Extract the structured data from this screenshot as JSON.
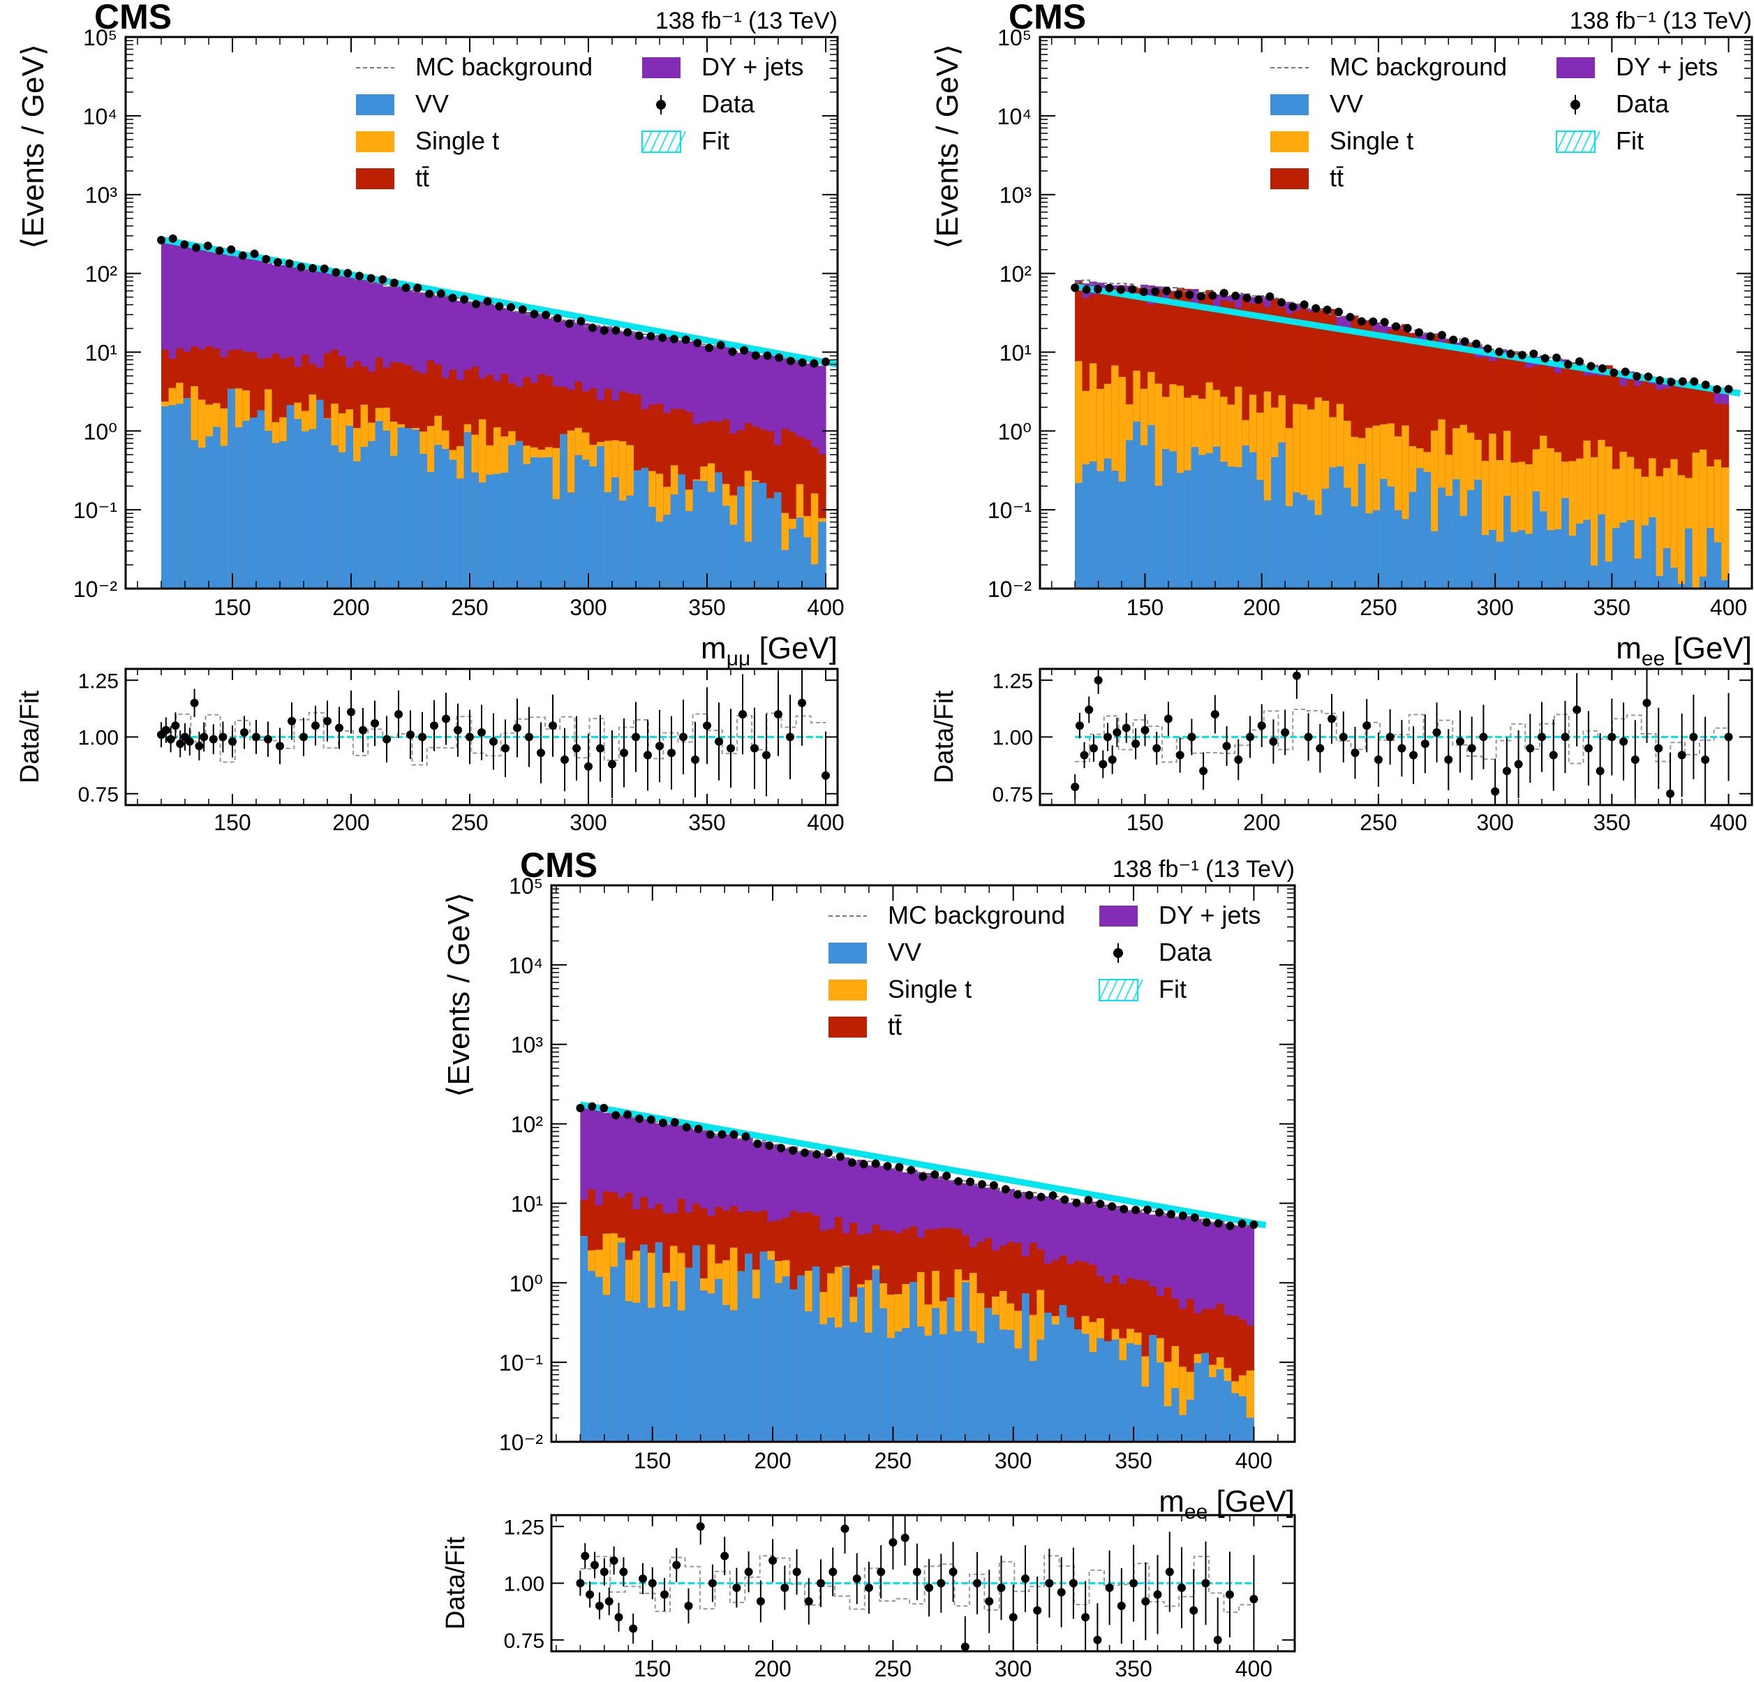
{
  "colors": {
    "vv": "#3f90da",
    "single_t": "#ffa90e",
    "ttbar": "#bd1f01",
    "dy": "#832db6",
    "fit": "#00e5ee",
    "mc_background": "#777777",
    "data": "#000000"
  },
  "legend": {
    "mc_background": "MC background",
    "vv": "VV",
    "single_t": "Single t",
    "ttbar": "tt̄",
    "dy": "DY + jets",
    "data": "Data",
    "fit": "Fit"
  },
  "chart_data": [
    {
      "type": "bar",
      "stacked": true,
      "yscale": "log",
      "experiment": "CMS",
      "lumi": "138 fb⁻¹ (13 TeV)",
      "xlabel": "m_μμ [GeV]",
      "ylabel": "⟨Events / GeV⟩",
      "xlim": [
        105,
        405
      ],
      "ylim": [
        0.01,
        100000
      ],
      "x_ticks": [
        150,
        200,
        250,
        300,
        350,
        400
      ],
      "y_ticks": [
        "10⁻²",
        "10⁻¹",
        "10⁰",
        "10¹",
        "10²",
        "10³",
        "10⁴",
        "10⁵"
      ],
      "legend_position": "top-right",
      "bin_range": [
        120,
        400
      ],
      "series": [
        {
          "name": "VV",
          "approx_level": {
            "120": 1.5,
            "200": 1.0,
            "300": 0.3,
            "400": 0.05
          }
        },
        {
          "name": "Single t",
          "approx_level": {
            "120": 3.0,
            "200": 1.5,
            "300": 0.6,
            "400": 0.1
          }
        },
        {
          "name": "tt̄",
          "approx_level": {
            "120": 10,
            "200": 8,
            "300": 3.5,
            "400": 0.6
          }
        },
        {
          "name": "DY + jets",
          "approx_level": {
            "120": 260,
            "200": 90,
            "300": 22,
            "400": 7
          }
        }
      ],
      "fit": {
        "x": [
          120,
          405
        ],
        "y": [
          270,
          7
        ]
      },
      "data": {
        "approx_level": {
          "120": 280,
          "200": 95,
          "300": 22,
          "400": 7
        }
      },
      "ratio": {
        "ylabel": "Data/Fit",
        "ylim": [
          0.7,
          1.3
        ],
        "y_ticks": [
          "0.75",
          "1.00",
          "1.25"
        ],
        "points": [
          [
            120,
            1.01
          ],
          [
            122,
            1.03
          ],
          [
            124,
            0.99
          ],
          [
            126,
            1.05
          ],
          [
            128,
            0.97
          ],
          [
            130,
            1.0
          ],
          [
            132,
            0.98
          ],
          [
            134,
            1.15
          ],
          [
            136,
            0.96
          ],
          [
            138,
            1.0
          ],
          [
            142,
            0.99
          ],
          [
            146,
            1.0
          ],
          [
            150,
            0.98
          ],
          [
            155,
            1.02
          ],
          [
            160,
            1.0
          ],
          [
            165,
            0.99
          ],
          [
            170,
            0.96
          ],
          [
            175,
            1.07
          ],
          [
            180,
            1.0
          ],
          [
            185,
            1.05
          ],
          [
            190,
            1.07
          ],
          [
            195,
            1.04
          ],
          [
            200,
            1.11
          ],
          [
            205,
            1.03
          ],
          [
            210,
            1.06
          ],
          [
            215,
            0.99
          ],
          [
            220,
            1.1
          ],
          [
            225,
            1.01
          ],
          [
            230,
            1.0
          ],
          [
            235,
            1.05
          ],
          [
            240,
            1.08
          ],
          [
            245,
            1.03
          ],
          [
            250,
            1.0
          ],
          [
            255,
            1.02
          ],
          [
            260,
            0.98
          ],
          [
            265,
            0.95
          ],
          [
            270,
            1.04
          ],
          [
            275,
            1.0
          ],
          [
            280,
            0.93
          ],
          [
            285,
            1.05
          ],
          [
            290,
            0.9
          ],
          [
            295,
            0.95
          ],
          [
            300,
            0.87
          ],
          [
            305,
            0.95
          ],
          [
            310,
            0.88
          ],
          [
            315,
            0.93
          ],
          [
            320,
            1.0
          ],
          [
            325,
            0.92
          ],
          [
            330,
            0.96
          ],
          [
            335,
            0.93
          ],
          [
            340,
            1.0
          ],
          [
            345,
            0.9
          ],
          [
            350,
            1.05
          ],
          [
            355,
            0.98
          ],
          [
            360,
            0.95
          ],
          [
            365,
            1.1
          ],
          [
            370,
            0.95
          ],
          [
            375,
            0.92
          ],
          [
            380,
            1.1
          ],
          [
            385,
            1.0
          ],
          [
            390,
            1.15
          ],
          [
            400,
            0.83
          ]
        ]
      }
    },
    {
      "type": "bar",
      "stacked": true,
      "yscale": "log",
      "experiment": "CMS",
      "lumi": "138 fb⁻¹ (13 TeV)",
      "xlabel": "m_ee [GeV]",
      "ylabel": "⟨Events / GeV⟩",
      "xlim": [
        105,
        410
      ],
      "ylim": [
        0.01,
        100000
      ],
      "x_ticks": [
        150,
        200,
        250,
        300,
        350,
        400
      ],
      "y_ticks": [
        "10⁻²",
        "10⁻¹",
        "10⁰",
        "10¹",
        "10²",
        "10³",
        "10⁴",
        "10⁵"
      ],
      "legend_position": "top-right",
      "bin_range": [
        120,
        400
      ],
      "series": [
        {
          "name": "VV",
          "approx_level": {
            "120": 0.6,
            "200": 0.3,
            "300": 0.1,
            "400": 0.02
          }
        },
        {
          "name": "Single t",
          "approx_level": {
            "120": 5,
            "200": 2,
            "300": 0.7,
            "400": 0.3
          }
        },
        {
          "name": "tt̄",
          "approx_level": {
            "120": 60,
            "200": 45,
            "300": 10,
            "400": 2.7
          }
        },
        {
          "name": "DY + jets",
          "approx_level": {
            "120": 80,
            "200": 50,
            "300": 11,
            "400": 3.2
          }
        }
      ],
      "fit": {
        "x": [
          120,
          405
        ],
        "y": [
          68,
          3
        ]
      },
      "data": {
        "approx_level": {
          "120": 65,
          "200": 50,
          "300": 11,
          "400": 3.3
        }
      },
      "ratio": {
        "ylabel": "Data/Fit",
        "ylim": [
          0.7,
          1.3
        ],
        "y_ticks": [
          "0.75",
          "1.00",
          "1.25"
        ],
        "points": [
          [
            120,
            0.78
          ],
          [
            122,
            1.05
          ],
          [
            124,
            0.92
          ],
          [
            126,
            1.12
          ],
          [
            128,
            0.95
          ],
          [
            130,
            1.25
          ],
          [
            132,
            0.88
          ],
          [
            134,
            1.0
          ],
          [
            136,
            0.9
          ],
          [
            138,
            1.02
          ],
          [
            142,
            1.04
          ],
          [
            146,
            0.97
          ],
          [
            150,
            1.03
          ],
          [
            155,
            0.95
          ],
          [
            160,
            1.08
          ],
          [
            165,
            0.92
          ],
          [
            170,
            1.0
          ],
          [
            175,
            0.85
          ],
          [
            180,
            1.1
          ],
          [
            185,
            0.96
          ],
          [
            190,
            0.9
          ],
          [
            195,
            1.0
          ],
          [
            200,
            1.05
          ],
          [
            205,
            0.98
          ],
          [
            210,
            1.02
          ],
          [
            215,
            1.27
          ],
          [
            220,
            1.0
          ],
          [
            225,
            0.95
          ],
          [
            230,
            1.08
          ],
          [
            235,
            1.0
          ],
          [
            240,
            0.93
          ],
          [
            245,
            1.05
          ],
          [
            250,
            0.9
          ],
          [
            255,
            1.0
          ],
          [
            260,
            0.95
          ],
          [
            265,
            0.92
          ],
          [
            270,
            0.97
          ],
          [
            275,
            1.02
          ],
          [
            280,
            0.9
          ],
          [
            285,
            0.98
          ],
          [
            290,
            0.95
          ],
          [
            295,
            1.0
          ],
          [
            300,
            0.76
          ],
          [
            305,
            0.85
          ],
          [
            310,
            0.88
          ],
          [
            315,
            0.95
          ],
          [
            320,
            1.0
          ],
          [
            325,
            0.92
          ],
          [
            330,
            1.0
          ],
          [
            335,
            1.12
          ],
          [
            340,
            0.95
          ],
          [
            345,
            0.85
          ],
          [
            350,
            1.0
          ],
          [
            355,
            0.98
          ],
          [
            360,
            0.9
          ],
          [
            365,
            1.15
          ],
          [
            370,
            0.95
          ],
          [
            375,
            0.75
          ],
          [
            380,
            0.92
          ],
          [
            385,
            1.0
          ],
          [
            390,
            0.9
          ],
          [
            400,
            1.0
          ]
        ]
      }
    },
    {
      "type": "bar",
      "stacked": true,
      "yscale": "log",
      "experiment": "CMS",
      "lumi": "138 fb⁻¹ (13 TeV)",
      "xlabel": "m_ee [GeV]",
      "ylabel": "⟨Events / GeV⟩",
      "xlim": [
        108,
        417
      ],
      "ylim": [
        0.01,
        100000
      ],
      "x_ticks": [
        150,
        200,
        250,
        300,
        350,
        400
      ],
      "y_ticks": [
        "10⁻²",
        "10⁻¹",
        "10⁰",
        "10¹",
        "10²",
        "10³",
        "10⁴",
        "10⁵"
      ],
      "legend_position": "top-right",
      "bin_range": [
        120,
        400
      ],
      "series": [
        {
          "name": "VV",
          "approx_level": {
            "120": 1.5,
            "200": 1.0,
            "300": 0.3,
            "400": 0.03
          }
        },
        {
          "name": "Single t",
          "approx_level": {
            "120": 3,
            "200": 1.5,
            "300": 0.7,
            "400": 0.05
          }
        },
        {
          "name": "tt̄",
          "approx_level": {
            "120": 12,
            "200": 7,
            "300": 3,
            "400": 0.3
          }
        },
        {
          "name": "DY + jets",
          "approx_level": {
            "120": 170,
            "200": 55,
            "300": 14,
            "400": 5
          }
        }
      ],
      "fit": {
        "x": [
          120,
          405
        ],
        "y": [
          175,
          5.3
        ]
      },
      "data": {
        "approx_level": {
          "120": 170,
          "200": 55,
          "300": 14,
          "400": 5
        }
      },
      "ratio": {
        "ylabel": "Data/Fit",
        "ylim": [
          0.7,
          1.3
        ],
        "y_ticks": [
          "0.75",
          "1.00",
          "1.25"
        ],
        "points": [
          [
            120,
            1.0
          ],
          [
            122,
            1.12
          ],
          [
            124,
            0.95
          ],
          [
            126,
            1.08
          ],
          [
            128,
            0.9
          ],
          [
            130,
            1.05
          ],
          [
            132,
            0.92
          ],
          [
            134,
            1.1
          ],
          [
            136,
            0.85
          ],
          [
            138,
            1.05
          ],
          [
            142,
            0.8
          ],
          [
            146,
            1.02
          ],
          [
            150,
            1.0
          ],
          [
            155,
            0.95
          ],
          [
            160,
            1.08
          ],
          [
            165,
            0.9
          ],
          [
            170,
            1.25
          ],
          [
            175,
            1.0
          ],
          [
            180,
            1.12
          ],
          [
            185,
            0.98
          ],
          [
            190,
            1.05
          ],
          [
            195,
            0.92
          ],
          [
            200,
            1.1
          ],
          [
            205,
            0.98
          ],
          [
            210,
            1.05
          ],
          [
            215,
            0.92
          ],
          [
            220,
            1.0
          ],
          [
            225,
            1.05
          ],
          [
            230,
            1.24
          ],
          [
            235,
            1.02
          ],
          [
            240,
            0.98
          ],
          [
            245,
            1.05
          ],
          [
            250,
            1.18
          ],
          [
            255,
            1.2
          ],
          [
            260,
            1.05
          ],
          [
            265,
            0.98
          ],
          [
            270,
            1.0
          ],
          [
            275,
            1.05
          ],
          [
            280,
            0.72
          ],
          [
            285,
            1.0
          ],
          [
            290,
            0.92
          ],
          [
            295,
            0.98
          ],
          [
            300,
            0.85
          ],
          [
            305,
            1.02
          ],
          [
            310,
            0.88
          ],
          [
            315,
            1.0
          ],
          [
            320,
            0.96
          ],
          [
            325,
            1.0
          ],
          [
            330,
            0.85
          ],
          [
            335,
            0.75
          ],
          [
            340,
            0.98
          ],
          [
            345,
            0.9
          ],
          [
            350,
            1.0
          ],
          [
            355,
            0.92
          ],
          [
            360,
            0.95
          ],
          [
            365,
            1.05
          ],
          [
            370,
            0.98
          ],
          [
            375,
            0.88
          ],
          [
            380,
            1.0
          ],
          [
            385,
            0.75
          ],
          [
            390,
            0.95
          ],
          [
            400,
            0.93
          ]
        ]
      }
    }
  ]
}
